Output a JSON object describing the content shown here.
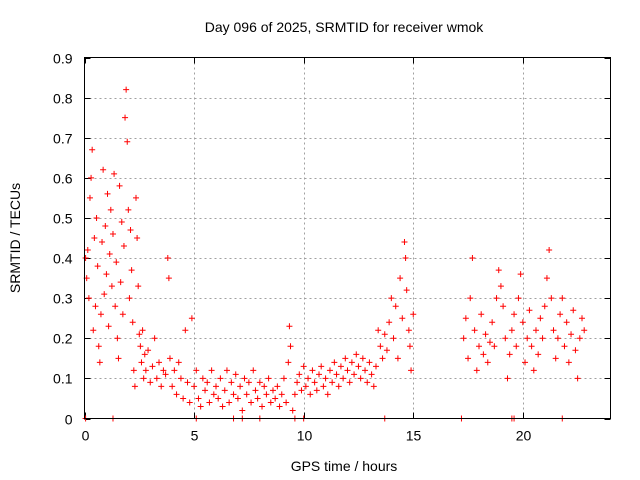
{
  "chart_data": {
    "type": "scatter",
    "title": "Day 096 of 2025, SRMTID for receiver wmok",
    "xlabel": "GPS time / hours",
    "ylabel": "SRMTID / TECUs",
    "xlim": [
      0,
      24
    ],
    "ylim": [
      0,
      0.9
    ],
    "xticks": [
      0,
      5,
      10,
      15,
      20
    ],
    "yticks": [
      0,
      0.1,
      0.2,
      0.3,
      0.4,
      0.5,
      0.6,
      0.7,
      0.8,
      0.9
    ],
    "xtick_labels": [
      "0",
      "5",
      "10",
      "15",
      "20"
    ],
    "ytick_labels": [
      "0",
      "0.1",
      "0.2",
      "0.3",
      "0.4",
      "0.5",
      "0.6",
      "0.7",
      "0.8",
      "0.9"
    ],
    "grid": true,
    "marker": "+",
    "color": "#ff0000",
    "series": [
      {
        "name": "SRMTID",
        "points": [
          [
            0.05,
            0.4
          ],
          [
            0.1,
            0.35
          ],
          [
            0.15,
            0.42
          ],
          [
            0.2,
            0.3
          ],
          [
            0.25,
            0.55
          ],
          [
            0.3,
            0.6
          ],
          [
            0.35,
            0.67
          ],
          [
            0.4,
            0.22
          ],
          [
            0.45,
            0.45
          ],
          [
            0.5,
            0.28
          ],
          [
            0.55,
            0.5
          ],
          [
            0.6,
            0.38
          ],
          [
            0.65,
            0.18
          ],
          [
            0.7,
            0.14
          ],
          [
            0.75,
            0.26
          ],
          [
            0.8,
            0.44
          ],
          [
            0.85,
            0.62
          ],
          [
            0.9,
            0.31
          ],
          [
            0.95,
            0.48
          ],
          [
            1.0,
            0.36
          ],
          [
            1.05,
            0.56
          ],
          [
            1.1,
            0.23
          ],
          [
            1.15,
            0.41
          ],
          [
            1.2,
            0.52
          ],
          [
            1.25,
            0.33
          ],
          [
            1.3,
            0.46
          ],
          [
            1.35,
            0.61
          ],
          [
            1.4,
            0.28
          ],
          [
            1.45,
            0.39
          ],
          [
            1.5,
            0.2
          ],
          [
            1.55,
            0.15
          ],
          [
            1.6,
            0.58
          ],
          [
            1.65,
            0.34
          ],
          [
            1.7,
            0.49
          ],
          [
            1.75,
            0.26
          ],
          [
            1.8,
            0.43
          ],
          [
            1.85,
            0.75
          ],
          [
            1.9,
            0.82
          ],
          [
            1.95,
            0.69
          ],
          [
            2.0,
            0.52
          ],
          [
            2.05,
            0.3
          ],
          [
            2.1,
            0.47
          ],
          [
            2.15,
            0.37
          ],
          [
            2.2,
            0.24
          ],
          [
            2.25,
            0.12
          ],
          [
            2.3,
            0.08
          ],
          [
            2.35,
            0.55
          ],
          [
            2.4,
            0.45
          ],
          [
            2.45,
            0.33
          ],
          [
            2.5,
            0.21
          ],
          [
            2.55,
            0.18
          ],
          [
            2.6,
            0.14
          ],
          [
            2.65,
            0.22
          ],
          [
            2.7,
            0.1
          ],
          [
            2.75,
            0.16
          ],
          [
            2.8,
            0.12
          ],
          [
            2.9,
            0.17
          ],
          [
            3.0,
            0.09
          ],
          [
            3.1,
            0.13
          ],
          [
            3.2,
            0.2
          ],
          [
            3.3,
            0.1
          ],
          [
            3.4,
            0.14
          ],
          [
            3.5,
            0.08
          ],
          [
            3.6,
            0.12
          ],
          [
            3.7,
            0.11
          ],
          [
            3.8,
            0.4
          ],
          [
            3.85,
            0.35
          ],
          [
            3.9,
            0.15
          ],
          [
            4.0,
            0.08
          ],
          [
            4.1,
            0.12
          ],
          [
            4.2,
            0.06
          ],
          [
            4.3,
            0.14
          ],
          [
            4.4,
            0.1
          ],
          [
            4.5,
            0.05
          ],
          [
            4.6,
            0.22
          ],
          [
            4.7,
            0.09
          ],
          [
            4.8,
            0.04
          ],
          [
            4.9,
            0.25
          ],
          [
            5.0,
            0.08
          ],
          [
            5.1,
            0.12
          ],
          [
            5.2,
            0.05
          ],
          [
            5.3,
            0.03
          ],
          [
            5.4,
            0.1
          ],
          [
            5.5,
            0.07
          ],
          [
            5.6,
            0.09
          ],
          [
            5.7,
            0.04
          ],
          [
            5.8,
            0.12
          ],
          [
            5.9,
            0.06
          ],
          [
            6.0,
            0.08
          ],
          [
            6.1,
            0.05
          ],
          [
            6.2,
            0.1
          ],
          [
            6.3,
            0.03
          ],
          [
            6.4,
            0.07
          ],
          [
            6.5,
            0.12
          ],
          [
            6.6,
            0.04
          ],
          [
            6.7,
            0.09
          ],
          [
            6.8,
            0.06
          ],
          [
            6.9,
            0.11
          ],
          [
            7.0,
            0.05
          ],
          [
            7.1,
            0.08
          ],
          [
            7.2,
            0.02
          ],
          [
            7.3,
            0.1
          ],
          [
            7.4,
            0.06
          ],
          [
            7.5,
            0.09
          ],
          [
            7.6,
            0.04
          ],
          [
            7.7,
            0.12
          ],
          [
            7.8,
            0.07
          ],
          [
            7.9,
            0.05
          ],
          [
            8.0,
            0.09
          ],
          [
            8.1,
            0.03
          ],
          [
            8.2,
            0.08
          ],
          [
            8.3,
            0.06
          ],
          [
            8.4,
            0.1
          ],
          [
            8.5,
            0.04
          ],
          [
            8.6,
            0.07
          ],
          [
            8.7,
            0.05
          ],
          [
            8.8,
            0.08
          ],
          [
            8.9,
            0.03
          ],
          [
            9.0,
            0.06
          ],
          [
            9.1,
            0.1
          ],
          [
            9.2,
            0.04
          ],
          [
            9.3,
            0.14
          ],
          [
            9.35,
            0.23
          ],
          [
            9.4,
            0.18
          ],
          [
            9.5,
            0.02
          ],
          [
            9.6,
            0.06
          ],
          [
            9.7,
            0.09
          ],
          [
            9.8,
            0.11
          ],
          [
            9.9,
            0.07
          ],
          [
            10.0,
            0.13
          ],
          [
            10.1,
            0.08
          ],
          [
            10.2,
            0.1
          ],
          [
            10.3,
            0.06
          ],
          [
            10.4,
            0.12
          ],
          [
            10.5,
            0.09
          ],
          [
            10.6,
            0.07
          ],
          [
            10.7,
            0.11
          ],
          [
            10.8,
            0.13
          ],
          [
            10.9,
            0.08
          ],
          [
            11.0,
            0.1
          ],
          [
            11.1,
            0.06
          ],
          [
            11.2,
            0.12
          ],
          [
            11.3,
            0.09
          ],
          [
            11.4,
            0.14
          ],
          [
            11.5,
            0.11
          ],
          [
            11.6,
            0.08
          ],
          [
            11.7,
            0.13
          ],
          [
            11.8,
            0.1
          ],
          [
            11.9,
            0.15
          ],
          [
            12.0,
            0.12
          ],
          [
            12.1,
            0.09
          ],
          [
            12.2,
            0.14
          ],
          [
            12.3,
            0.11
          ],
          [
            12.4,
            0.16
          ],
          [
            12.5,
            0.13
          ],
          [
            12.6,
            0.1
          ],
          [
            12.7,
            0.15
          ],
          [
            12.8,
            0.12
          ],
          [
            12.9,
            0.09
          ],
          [
            13.0,
            0.14
          ],
          [
            13.1,
            0.11
          ],
          [
            13.2,
            0.08
          ],
          [
            13.3,
            0.13
          ],
          [
            13.4,
            0.22
          ],
          [
            13.5,
            0.18
          ],
          [
            13.6,
            0.15
          ],
          [
            13.7,
            0.21
          ],
          [
            13.8,
            0.17
          ],
          [
            13.9,
            0.24
          ],
          [
            14.0,
            0.3
          ],
          [
            14.1,
            0.2
          ],
          [
            14.2,
            0.28
          ],
          [
            14.3,
            0.15
          ],
          [
            14.4,
            0.35
          ],
          [
            14.5,
            0.25
          ],
          [
            14.6,
            0.44
          ],
          [
            14.65,
            0.4
          ],
          [
            14.7,
            0.32
          ],
          [
            14.8,
            0.22
          ],
          [
            14.85,
            0.18
          ],
          [
            14.9,
            0.12
          ],
          [
            15.0,
            0.26
          ],
          [
            17.3,
            0.2
          ],
          [
            17.4,
            0.25
          ],
          [
            17.5,
            0.15
          ],
          [
            17.6,
            0.3
          ],
          [
            17.7,
            0.4
          ],
          [
            17.8,
            0.22
          ],
          [
            17.9,
            0.12
          ],
          [
            18.0,
            0.18
          ],
          [
            18.1,
            0.26
          ],
          [
            18.2,
            0.16
          ],
          [
            18.3,
            0.21
          ],
          [
            18.4,
            0.14
          ],
          [
            18.5,
            0.19
          ],
          [
            18.6,
            0.24
          ],
          [
            18.7,
            0.18
          ],
          [
            18.8,
            0.3
          ],
          [
            18.9,
            0.37
          ],
          [
            19.0,
            0.33
          ],
          [
            19.1,
            0.28
          ],
          [
            19.2,
            0.2
          ],
          [
            19.3,
            0.1
          ],
          [
            19.4,
            0.16
          ],
          [
            19.5,
            0.22
          ],
          [
            19.6,
            0.26
          ],
          [
            19.7,
            0.18
          ],
          [
            19.8,
            0.3
          ],
          [
            19.9,
            0.36
          ],
          [
            20.0,
            0.24
          ],
          [
            20.1,
            0.14
          ],
          [
            20.2,
            0.2
          ],
          [
            20.3,
            0.27
          ],
          [
            20.4,
            0.18
          ],
          [
            20.5,
            0.12
          ],
          [
            20.6,
            0.22
          ],
          [
            20.7,
            0.16
          ],
          [
            20.8,
            0.25
          ],
          [
            20.9,
            0.2
          ],
          [
            21.0,
            0.28
          ],
          [
            21.1,
            0.35
          ],
          [
            21.2,
            0.42
          ],
          [
            21.3,
            0.3
          ],
          [
            21.4,
            0.22
          ],
          [
            21.5,
            0.15
          ],
          [
            21.6,
            0.2
          ],
          [
            21.7,
            0.26
          ],
          [
            21.8,
            0.3
          ],
          [
            21.9,
            0.18
          ],
          [
            22.0,
            0.24
          ],
          [
            22.1,
            0.14
          ],
          [
            22.2,
            0.21
          ],
          [
            22.3,
            0.27
          ],
          [
            22.4,
            0.17
          ],
          [
            22.5,
            0.1
          ],
          [
            22.6,
            0.2
          ],
          [
            22.7,
            0.25
          ],
          [
            22.8,
            0.22
          ]
        ]
      }
    ],
    "baseline_markers": [
      0.05,
      1.3,
      5.1,
      6.8,
      7.2,
      8.0,
      9.6,
      10.0,
      13.7,
      17.2,
      19.5,
      19.6,
      21.8
    ]
  }
}
